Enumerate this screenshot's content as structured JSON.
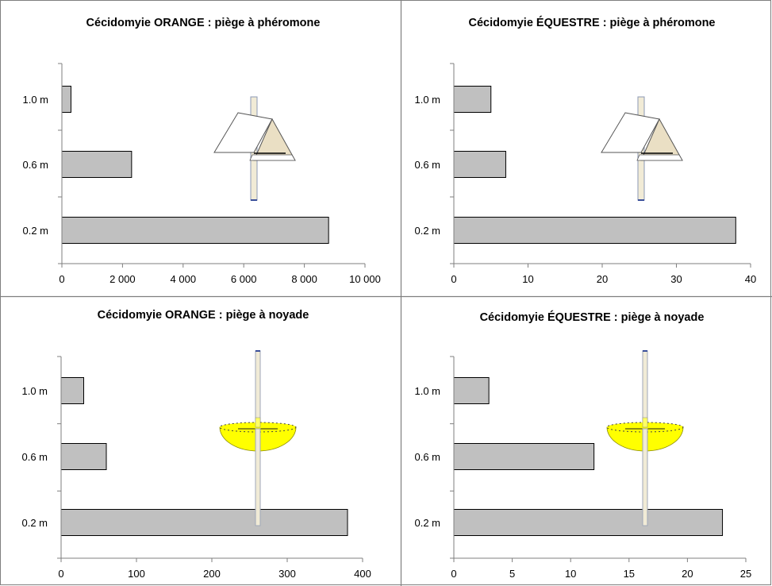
{
  "chart_data": [
    {
      "type": "bar",
      "orientation": "horizontal",
      "title": "Cécidomyie ORANGE : piège à phéromone",
      "categories": [
        "1.0 m",
        "0.6 m",
        "0.2 m"
      ],
      "values": [
        300,
        2300,
        8800
      ],
      "xlim": [
        0,
        10000
      ],
      "xticks": [
        "0",
        "2 000",
        "4 000",
        "6 000",
        "8 000",
        "10 000"
      ],
      "bar_color": "#c0c0c0",
      "trap_icon": "pheromone-trap-icon",
      "grid": false,
      "legend": "none"
    },
    {
      "type": "bar",
      "orientation": "horizontal",
      "title": "Cécidomyie ÉQUESTRE : piège à phéromone",
      "categories": [
        "1.0 m",
        "0.6 m",
        "0.2 m"
      ],
      "values": [
        5,
        7,
        38
      ],
      "xlim": [
        0,
        40
      ],
      "xticks": [
        "0",
        "10",
        "20",
        "30",
        "40"
      ],
      "bar_color": "#c0c0c0",
      "trap_icon": "pheromone-trap-icon",
      "grid": false,
      "legend": "none"
    },
    {
      "type": "bar",
      "orientation": "horizontal",
      "title": "Cécidomyie ORANGE : piège à noyade",
      "categories": [
        "1.0 m",
        "0.6 m",
        "0.2 m"
      ],
      "values": [
        30,
        60,
        380
      ],
      "xlim": [
        0,
        400
      ],
      "xticks": [
        "0",
        "100",
        "200",
        "300",
        "400"
      ],
      "bar_color": "#c0c0c0",
      "trap_icon": "water-trap-icon",
      "trap_color": "#ffff00",
      "grid": false,
      "legend": "none"
    },
    {
      "type": "bar",
      "orientation": "horizontal",
      "title": "Cécidomyie ÉQUESTRE : piège à noyade",
      "categories": [
        "1.0 m",
        "0.6 m",
        "0.2 m"
      ],
      "values": [
        3,
        12,
        23
      ],
      "xlim": [
        0,
        25
      ],
      "xticks": [
        "0",
        "5",
        "10",
        "15",
        "20",
        "25"
      ],
      "bar_color": "#c0c0c0",
      "trap_icon": "water-trap-icon",
      "trap_color": "#ffff00",
      "grid": false,
      "legend": "none"
    }
  ]
}
